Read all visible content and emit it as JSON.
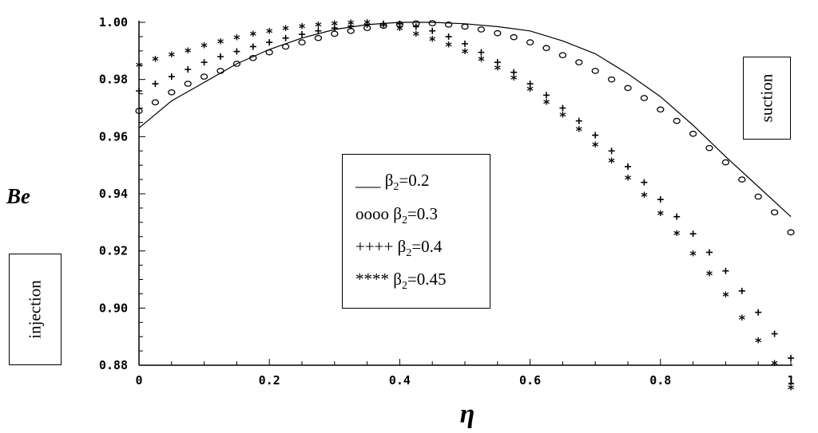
{
  "chart_data": {
    "type": "line",
    "xlabel": "η",
    "ylabel": "Be",
    "xlim": [
      0,
      1
    ],
    "ylim": [
      0.88,
      1.0
    ],
    "x_ticks": [
      "0",
      "0.2",
      "0.4",
      "0.6",
      "0.8",
      "1"
    ],
    "y_ticks": [
      "0.88",
      "0.90",
      "0.92",
      "0.94",
      "0.96",
      "0.98",
      "1.00"
    ],
    "grid": false,
    "legend_position": "center",
    "legend": [
      {
        "symbol": "___",
        "label": "β",
        "sub": "2",
        "value": "=0.2"
      },
      {
        "symbol": "oooo",
        "label": "β",
        "sub": "2",
        "value": "=0.3"
      },
      {
        "symbol": "++++",
        "label": "β",
        "sub": "2",
        "value": "=0.4"
      },
      {
        "symbol": "****",
        "label": "β",
        "sub": "2",
        "value": "=0.45"
      }
    ],
    "series": [
      {
        "name": "β2=0.2",
        "marker": "line",
        "x": [
          0,
          0.05,
          0.1,
          0.15,
          0.2,
          0.25,
          0.3,
          0.35,
          0.4,
          0.45,
          0.5,
          0.55,
          0.6,
          0.65,
          0.7,
          0.75,
          0.8,
          0.85,
          0.9,
          0.95,
          1.0
        ],
        "y": [
          0.963,
          0.9725,
          0.979,
          0.9855,
          0.9905,
          0.9945,
          0.9975,
          0.9992,
          1.0,
          1.0,
          0.9995,
          0.9985,
          0.997,
          0.9935,
          0.989,
          0.982,
          0.974,
          0.964,
          0.953,
          0.9425,
          0.932
        ]
      },
      {
        "name": "β2=0.3",
        "marker": "circle",
        "x": [
          0,
          0.025,
          0.05,
          0.075,
          0.1,
          0.125,
          0.15,
          0.175,
          0.2,
          0.225,
          0.25,
          0.275,
          0.3,
          0.325,
          0.35,
          0.375,
          0.4,
          0.425,
          0.45,
          0.475,
          0.5,
          0.525,
          0.55,
          0.575,
          0.6,
          0.625,
          0.65,
          0.675,
          0.7,
          0.725,
          0.75,
          0.775,
          0.8,
          0.825,
          0.85,
          0.875,
          0.9,
          0.925,
          0.95,
          0.975,
          1.0
        ],
        "y": [
          0.969,
          0.972,
          0.9755,
          0.9785,
          0.981,
          0.983,
          0.9855,
          0.9875,
          0.9895,
          0.9915,
          0.993,
          0.9945,
          0.996,
          0.997,
          0.998,
          0.9988,
          0.9993,
          0.9996,
          0.9997,
          0.9992,
          0.9985,
          0.9975,
          0.9962,
          0.9948,
          0.993,
          0.991,
          0.9885,
          0.986,
          0.983,
          0.98,
          0.977,
          0.9735,
          0.9695,
          0.9655,
          0.961,
          0.956,
          0.951,
          0.945,
          0.939,
          0.9335,
          0.9265
        ]
      },
      {
        "name": "β2=0.4",
        "marker": "plus",
        "x": [
          0,
          0.025,
          0.05,
          0.075,
          0.1,
          0.125,
          0.15,
          0.175,
          0.2,
          0.225,
          0.25,
          0.275,
          0.3,
          0.325,
          0.35,
          0.375,
          0.4,
          0.425,
          0.45,
          0.475,
          0.5,
          0.525,
          0.55,
          0.575,
          0.6,
          0.625,
          0.65,
          0.675,
          0.7,
          0.725,
          0.75,
          0.775,
          0.8,
          0.825,
          0.85,
          0.875,
          0.9,
          0.925,
          0.95,
          0.975,
          1.0
        ],
        "y": [
          0.976,
          0.9785,
          0.981,
          0.9835,
          0.986,
          0.988,
          0.9898,
          0.9915,
          0.993,
          0.9945,
          0.9958,
          0.997,
          0.998,
          0.9987,
          0.9992,
          0.9995,
          0.9995,
          0.9985,
          0.997,
          0.995,
          0.9925,
          0.9895,
          0.986,
          0.9825,
          0.9785,
          0.9745,
          0.97,
          0.9655,
          0.9605,
          0.955,
          0.9495,
          0.944,
          0.938,
          0.932,
          0.926,
          0.9195,
          0.913,
          0.906,
          0.8985,
          0.891,
          0.8825
        ]
      },
      {
        "name": "β2=0.45",
        "marker": "star",
        "x": [
          0,
          0.025,
          0.05,
          0.075,
          0.1,
          0.125,
          0.15,
          0.175,
          0.2,
          0.225,
          0.25,
          0.275,
          0.3,
          0.325,
          0.35,
          0.375,
          0.4,
          0.425,
          0.45,
          0.475,
          0.5,
          0.525,
          0.55,
          0.575,
          0.6,
          0.625,
          0.65,
          0.675,
          0.7,
          0.725,
          0.75,
          0.775,
          0.8,
          0.825,
          0.85,
          0.875,
          0.9,
          0.925,
          0.95,
          0.975,
          1.0
        ],
        "y": [
          0.985,
          0.987,
          0.9885,
          0.99,
          0.9918,
          0.9932,
          0.9945,
          0.9958,
          0.9968,
          0.9977,
          0.9985,
          0.999,
          0.9995,
          0.9997,
          0.9998,
          0.999,
          0.9977,
          0.9958,
          0.994,
          0.992,
          0.9897,
          0.987,
          0.984,
          0.9805,
          0.9765,
          0.972,
          0.9675,
          0.9625,
          0.957,
          0.9515,
          0.9455,
          0.9395,
          0.933,
          0.926,
          0.919,
          0.912,
          0.9045,
          0.8965,
          0.8885,
          0.8805,
          0.872
        ]
      }
    ]
  },
  "annotations": {
    "suction": "suction",
    "injection": "injection"
  }
}
